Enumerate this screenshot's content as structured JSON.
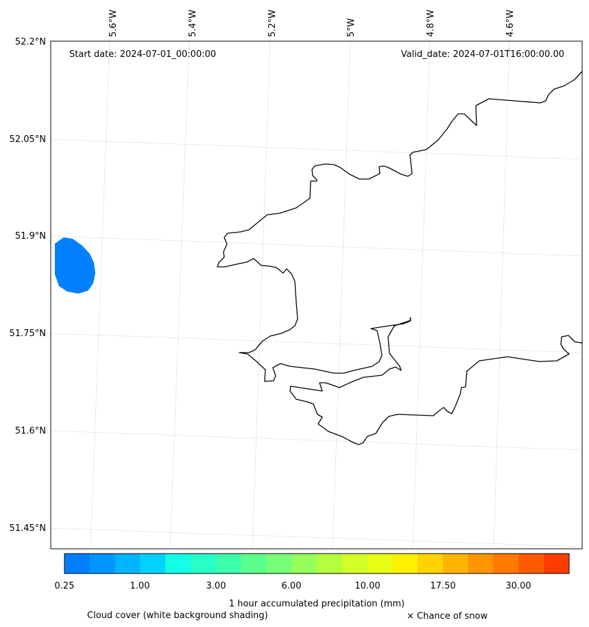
{
  "map": {
    "start_date_text": "Start date: 2024-07-01_00:00:00",
    "valid_date_text": "Valid_date: 2024-07-01T16:00:00.00",
    "lat_labels": [
      "52.2°N",
      "52.05°N",
      "51.9°N",
      "51.75°N",
      "51.6°N",
      "51.45°N"
    ],
    "lon_labels": [
      "5.6°W",
      "5.4°W",
      "5.2°W",
      "5°W",
      "4.8°W",
      "4.6°W"
    ],
    "gridlines": true,
    "coastline_color": "#000000",
    "precip_area_color": "#0080ff"
  },
  "colorbar": {
    "colors": [
      "#0080ff",
      "#0096ff",
      "#00b4ff",
      "#00d2ff",
      "#14ffe6",
      "#28ffc8",
      "#3cffaa",
      "#5aff8c",
      "#78ff78",
      "#96ff5a",
      "#b4ff3c",
      "#d2ff28",
      "#e6ff14",
      "#fff000",
      "#ffd200",
      "#ffb400",
      "#ff9600",
      "#ff7800",
      "#ff5a00",
      "#ff3c00"
    ],
    "tick_labels": [
      "0.25",
      "1.00",
      "3.00",
      "6.00",
      "10.00",
      "17.50",
      "30.00"
    ],
    "label": "1 hour accumulated precipitation (mm)"
  },
  "footer": {
    "cloud_note": "Cloud cover (white background shading)",
    "snow_note": "× Chance of snow"
  }
}
